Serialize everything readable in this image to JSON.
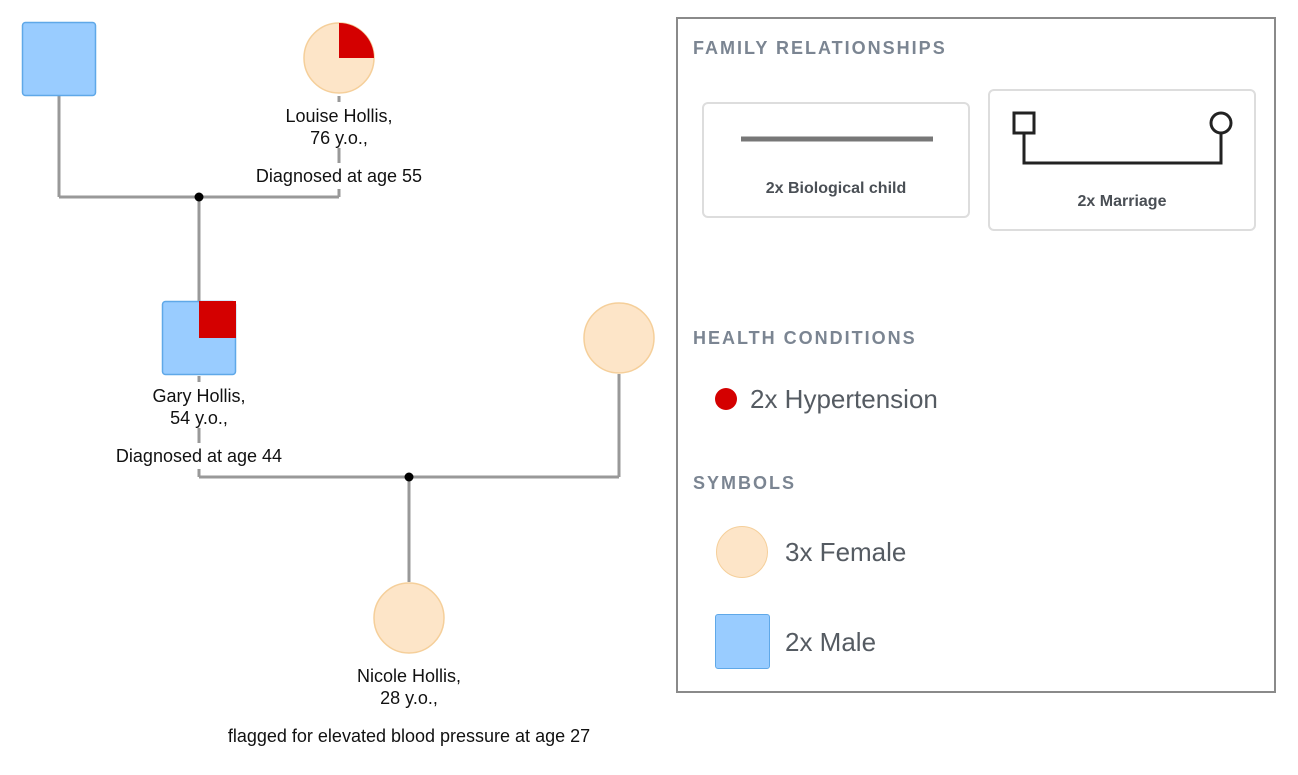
{
  "colors": {
    "male_fill": "#99ccff",
    "male_stroke": "#5fa8e8",
    "female_fill": "#fde5c8",
    "female_stroke": "#f5cf9a",
    "condition": "#d40000",
    "line": "#999999",
    "junction": "#000000"
  },
  "people": [
    {
      "id": "grandfather",
      "sex": "male",
      "affected": false,
      "name": "",
      "age": "",
      "note": ""
    },
    {
      "id": "louise",
      "sex": "female",
      "affected": true,
      "name": "Louise Hollis,",
      "age": "76 y.o.,",
      "note": "Diagnosed at age 55"
    },
    {
      "id": "gary",
      "sex": "male",
      "affected": true,
      "name": "Gary Hollis,",
      "age": "54 y.o.,",
      "note": "Diagnosed at age 44"
    },
    {
      "id": "spouse",
      "sex": "female",
      "affected": false,
      "name": "",
      "age": "",
      "note": ""
    },
    {
      "id": "nicole",
      "sex": "female",
      "affected": false,
      "name": "Nicole Hollis,",
      "age": "28 y.o.,",
      "note": "flagged for elevated blood pressure at age 27"
    }
  ],
  "legend": {
    "family_relationships": {
      "heading": "FAMILY RELATIONSHIPS",
      "biological_child": "2x Biological child",
      "marriage": "2x Marriage"
    },
    "health_conditions": {
      "heading": "HEALTH CONDITIONS",
      "items": [
        {
          "label": "2x Hypertension",
          "color": "#d40000"
        }
      ]
    },
    "symbols": {
      "heading": "SYMBOLS",
      "female": "3x Female",
      "male": "2x Male"
    }
  }
}
